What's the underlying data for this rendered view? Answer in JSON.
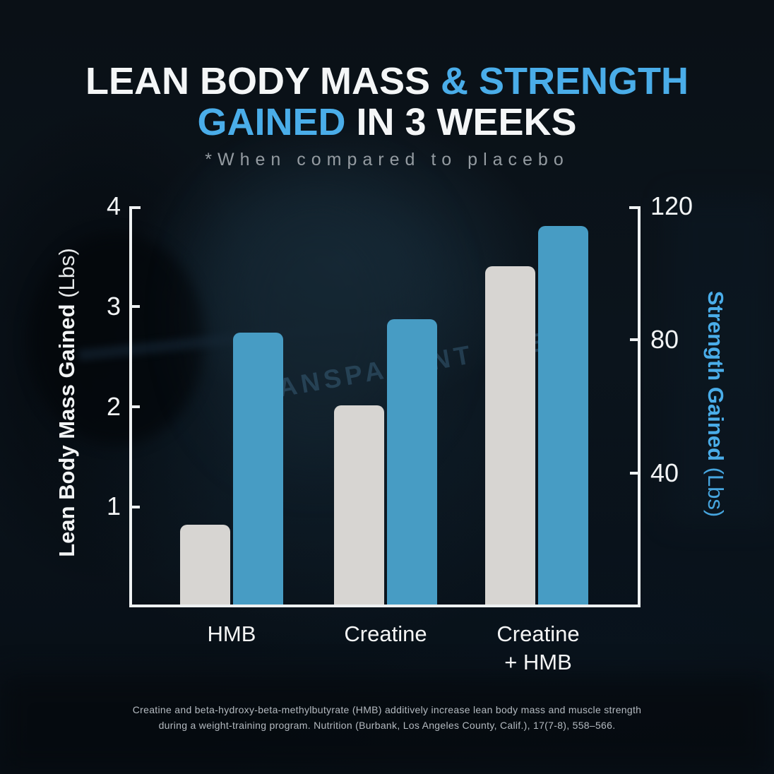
{
  "header": {
    "title": {
      "l1_white": "LEAN BODY MASS ",
      "l1_blue": "& STRENGTH",
      "l2_blue": "GAINED ",
      "l2_white": "IN 3 WEEKS"
    },
    "subtitle": "*When compared to placebo"
  },
  "watermark": "TRANSPARENT LABS",
  "chart_data": {
    "type": "bar",
    "title": "LEAN BODY MASS & STRENGTH GAINED IN 3 WEEKS",
    "subtitle": "*When compared to placebo",
    "categories": [
      "HMB",
      "Creatine",
      "Creatine\n+ HMB"
    ],
    "series": [
      {
        "name": "Lean Body Mass Gained (Lbs)",
        "axis": "left",
        "color": "#d7d5d2",
        "values": [
          0.8,
          2.0,
          3.4
        ]
      },
      {
        "name": "Strength Gained (Lbs)",
        "axis": "right",
        "color": "#479cc4",
        "values": [
          82,
          86,
          114
        ]
      }
    ],
    "left_axis": {
      "label": "Lean Body Mass Gained",
      "unit": "(Lbs)",
      "min": 0,
      "max": 4,
      "ticks": [
        4,
        3,
        2,
        1
      ]
    },
    "right_axis": {
      "label": "Strength Gained",
      "unit": "(Lbs)",
      "min": 0,
      "max": 120,
      "ticks": [
        120,
        80,
        40
      ]
    },
    "grid": false,
    "legend": "none"
  },
  "footer": {
    "line1": "Creatine and beta-hydroxy-beta-methylbutyrate (HMB) additively increase lean body mass and muscle strength",
    "line2": "during a weight-training program. Nutrition (Burbank, Los Angeles County, Calif.), 17(7-8), 558–566."
  },
  "colors": {
    "background": "#0b131a",
    "accent_blue": "#4aade9",
    "bar_blue": "#479cc4",
    "bar_gray": "#d7d5d2",
    "axis_white": "#eef1f2",
    "subtitle_gray": "#949ba1",
    "citation_gray": "#b4bac0"
  }
}
